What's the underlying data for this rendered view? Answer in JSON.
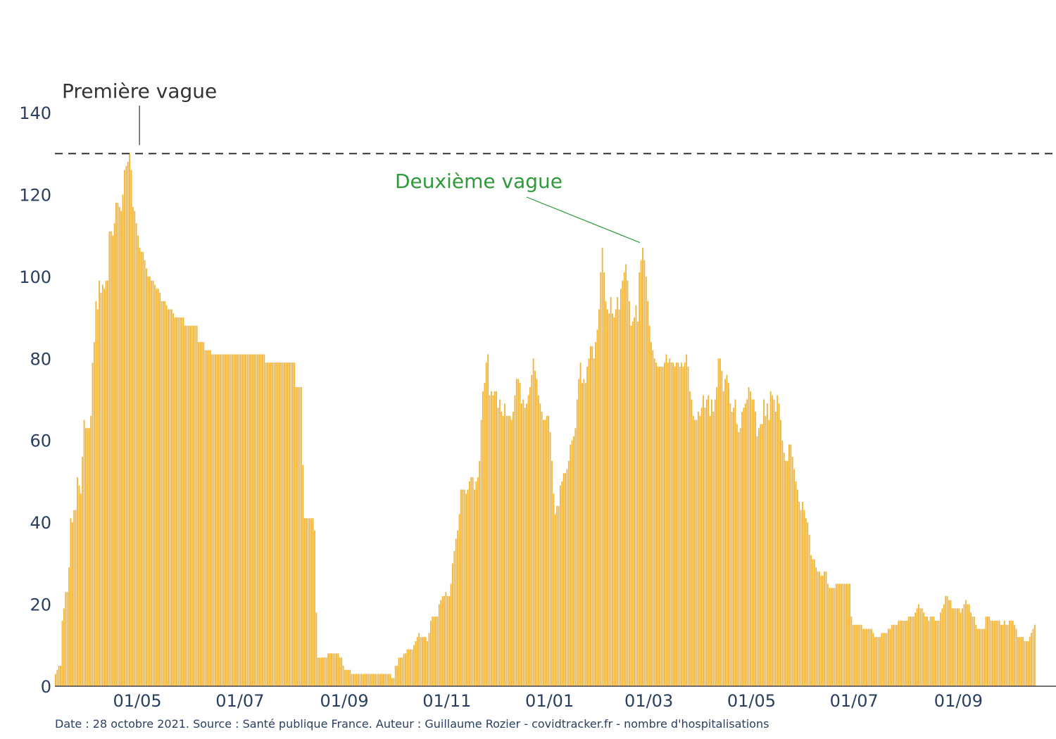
{
  "chart_data": {
    "type": "bar",
    "title": "",
    "xlabel": "",
    "ylabel": "",
    "ylim": [
      0,
      140
    ],
    "x_range": [
      "2020-03-13",
      "2021-10-28"
    ],
    "grid": false,
    "yticks": [
      0,
      20,
      40,
      60,
      80,
      100,
      120,
      140
    ],
    "xticks": [
      {
        "date": "2020-05-01",
        "label": "01/05"
      },
      {
        "date": "2020-07-01",
        "label": "01/07"
      },
      {
        "date": "2020-09-01",
        "label": "01/09"
      },
      {
        "date": "2020-11-01",
        "label": "01/11"
      },
      {
        "date": "2021-01-01",
        "label": "01/01"
      },
      {
        "date": "2021-03-01",
        "label": "01/03"
      },
      {
        "date": "2021-05-01",
        "label": "01/05"
      },
      {
        "date": "2021-07-01",
        "label": "01/07"
      },
      {
        "date": "2021-09-01",
        "label": "01/09"
      }
    ],
    "bar_color": "#f2b53c",
    "reference_line": {
      "y": 130,
      "style": "dashed",
      "color": "#333333"
    },
    "annotations": [
      {
        "text": "Première vague",
        "date": "2020-05-01",
        "y": 130,
        "color": "#333333"
      },
      {
        "text": "Deuxième vague",
        "date": "2021-02-27",
        "y": 110,
        "color": "#2e9a3a"
      }
    ],
    "series": [
      {
        "start_date": "2020-03-13",
        "values": [
          3,
          4,
          5,
          5,
          16,
          19,
          23,
          23,
          29,
          41,
          40,
          43,
          43,
          51,
          49,
          47,
          56,
          65,
          63,
          63,
          63,
          66,
          79,
          84,
          94,
          92,
          99,
          96,
          98,
          97,
          99,
          99,
          111,
          111,
          110,
          113,
          118,
          118,
          117,
          116,
          120,
          126,
          127,
          128,
          130,
          126,
          117,
          116,
          113,
          110,
          107,
          106,
          106,
          104,
          102,
          100,
          100,
          99,
          99,
          98,
          97,
          97,
          96,
          94,
          94,
          94,
          93,
          92,
          92,
          92,
          91,
          90,
          90,
          90,
          90,
          90,
          90,
          88,
          88,
          88,
          88,
          88,
          88,
          88,
          88,
          84,
          84,
          84,
          84,
          82,
          82,
          82,
          82,
          81,
          81,
          81,
          81,
          81,
          81,
          81,
          81,
          81,
          81,
          81,
          81,
          81,
          81,
          81,
          81,
          81,
          81,
          81,
          81,
          81,
          81,
          81,
          81,
          81,
          81,
          81,
          81,
          81,
          81,
          81,
          81,
          79,
          79,
          79,
          79,
          79,
          79,
          79,
          79,
          79,
          79,
          79,
          79,
          79,
          79,
          79,
          79,
          79,
          79,
          73,
          73,
          73,
          73,
          54,
          41,
          41,
          41,
          41,
          41,
          41,
          38,
          18,
          7,
          7,
          7,
          7,
          7,
          7,
          8,
          8,
          8,
          8,
          8,
          8,
          8,
          7,
          7,
          5,
          4,
          4,
          4,
          4,
          3,
          3,
          3,
          3,
          3,
          3,
          3,
          3,
          3,
          3,
          3,
          3,
          3,
          3,
          3,
          3,
          3,
          3,
          3,
          3,
          3,
          3,
          3,
          3,
          2,
          2,
          5,
          5,
          7,
          7,
          7,
          8,
          8,
          9,
          9,
          9,
          9,
          10,
          11,
          12,
          13,
          12,
          12,
          12,
          12,
          11,
          13,
          16,
          17,
          17,
          17,
          17,
          20,
          21,
          22,
          22,
          23,
          22,
          22,
          25,
          30,
          33,
          36,
          38,
          42,
          48,
          48,
          48,
          47,
          48,
          50,
          51,
          51,
          48,
          50,
          51,
          55,
          65,
          72,
          74,
          79,
          81,
          71,
          72,
          71,
          72,
          72,
          68,
          70,
          67,
          66,
          69,
          66,
          66,
          66,
          65,
          67,
          71,
          75,
          75,
          74,
          69,
          70,
          68,
          69,
          71,
          73,
          76,
          80,
          77,
          75,
          71,
          69,
          67,
          65,
          65,
          66,
          66,
          62,
          55,
          47,
          42,
          44,
          44,
          49,
          50,
          52,
          52,
          53,
          55,
          59,
          60,
          61,
          63,
          70,
          75,
          79,
          74,
          75,
          74,
          78,
          80,
          83,
          83,
          80,
          84,
          87,
          92,
          101,
          107,
          101,
          94,
          92,
          91,
          95,
          91,
          90,
          92,
          95,
          92,
          97,
          99,
          101,
          103,
          99,
          94,
          88,
          89,
          90,
          93,
          89,
          101,
          104,
          107,
          104,
          100,
          94,
          88,
          84,
          82,
          80,
          79,
          78,
          78,
          78,
          78,
          79,
          81,
          79,
          80,
          79,
          79,
          78,
          79,
          79,
          78,
          79,
          78,
          79,
          81,
          78,
          72,
          70,
          66,
          65,
          65,
          67,
          66,
          68,
          71,
          68,
          70,
          71,
          66,
          70,
          67,
          70,
          73,
          80,
          80,
          77,
          72,
          75,
          76,
          74,
          69,
          67,
          68,
          70,
          64,
          62,
          63,
          67,
          68,
          69,
          70,
          73,
          72,
          70,
          70,
          67,
          61,
          63,
          64,
          64,
          70,
          66,
          69,
          65,
          72,
          71,
          70,
          67,
          71,
          69,
          65,
          60,
          57,
          55,
          55,
          59,
          59,
          56,
          53,
          50,
          48,
          45,
          43,
          45,
          43,
          41,
          40,
          37,
          32,
          31,
          31,
          29,
          28,
          28,
          27,
          27,
          28,
          28,
          25,
          24,
          24,
          24,
          24,
          25,
          25,
          25,
          25,
          25,
          25,
          25,
          25,
          25,
          17,
          15,
          15,
          15,
          15,
          15,
          15,
          14,
          14,
          14,
          14,
          14,
          14,
          13,
          12,
          12,
          12,
          12,
          13,
          13,
          13,
          13,
          14,
          14,
          15,
          15,
          15,
          15,
          16,
          16,
          16,
          16,
          16,
          16,
          17,
          17,
          17,
          17,
          18,
          19,
          20,
          19,
          19,
          18,
          17,
          17,
          16,
          17,
          17,
          17,
          16,
          16,
          16,
          18,
          19,
          20,
          22,
          22,
          21,
          21,
          19,
          19,
          19,
          19,
          19,
          18,
          19,
          20,
          21,
          20,
          20,
          18,
          17,
          17,
          15,
          14,
          14,
          14,
          14,
          14,
          17,
          17,
          17,
          16,
          16,
          16,
          16,
          16,
          16,
          15,
          15,
          16,
          15,
          15,
          16,
          16,
          16,
          15,
          14,
          12,
          12,
          12,
          12,
          11,
          11,
          11,
          12,
          13,
          14,
          15
        ]
      }
    ]
  },
  "footnote": "Date : 28 octobre 2021. Source : Santé publique France. Auteur : Guillaume Rozier - covidtracker.fr - nombre d'hospitalisations"
}
